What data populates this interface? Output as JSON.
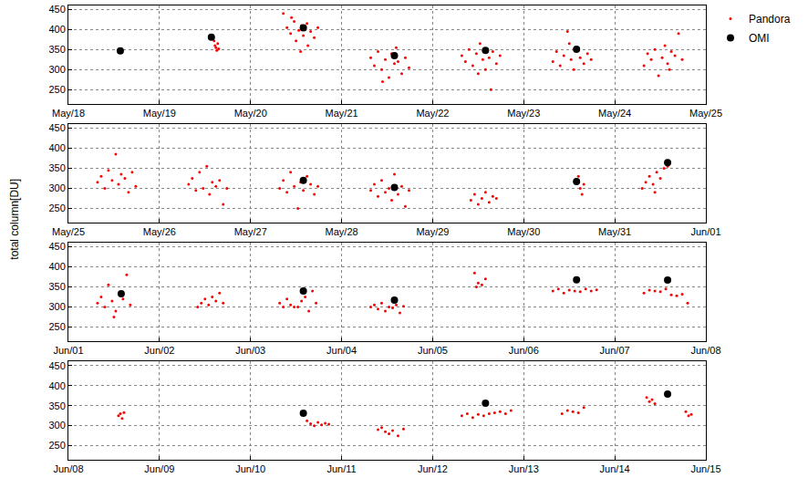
{
  "chart_data": {
    "type": "scatter",
    "y_label": "total column[DU]",
    "grid": true,
    "legend": "right",
    "ylim": [
      215,
      460
    ],
    "yticks": [
      250,
      300,
      350,
      400,
      450
    ],
    "series": [
      {
        "name": "Pandora",
        "color": "#ff0000",
        "marker": "dot"
      },
      {
        "name": "OMI",
        "color": "#000000",
        "marker": "circle"
      }
    ],
    "panels": [
      {
        "xlim": [
          0,
          7
        ],
        "xticks": [
          {
            "value": 0,
            "label": "May/18"
          },
          {
            "value": 1,
            "label": "May/19"
          },
          {
            "value": 2,
            "label": "May/20"
          },
          {
            "value": 3,
            "label": "May/21"
          },
          {
            "value": 4,
            "label": "May/22"
          },
          {
            "value": 5,
            "label": "May/23"
          },
          {
            "value": 6,
            "label": "May/24"
          },
          {
            "value": 7,
            "label": "May/25"
          }
        ],
        "series": [
          {
            "x": [
              1.6,
              1.61,
              1.62,
              1.63,
              1.64,
              1.65,
              2.36,
              2.4,
              2.44,
              2.48,
              2.5,
              2.53,
              2.56,
              2.58,
              2.6,
              2.63,
              2.66,
              2.7,
              2.74,
              2.45,
              2.55,
              2.62,
              3.32,
              3.36,
              3.4,
              3.44,
              3.48,
              3.52,
              3.55,
              3.58,
              3.62,
              3.66,
              3.7,
              3.74,
              3.45,
              3.6,
              4.32,
              4.36,
              4.4,
              4.44,
              4.48,
              4.52,
              4.55,
              4.58,
              4.62,
              4.66,
              4.7,
              4.74,
              4.5,
              4.64,
              5.32,
              5.36,
              5.4,
              5.44,
              5.48,
              5.52,
              5.55,
              5.58,
              5.62,
              5.66,
              5.7,
              5.74,
              5.5,
              6.32,
              6.36,
              6.4,
              6.44,
              6.48,
              6.52,
              6.55,
              6.58,
              6.62,
              6.66,
              6.7,
              6.74,
              6.6
            ],
            "values": [
              372,
              360,
              355,
              348,
              365,
              352,
              440,
              405,
              390,
              420,
              372,
              398,
              410,
              385,
              400,
              360,
              395,
              380,
              405,
              430,
              345,
              415,
              330,
              310,
              345,
              300,
              325,
              280,
              340,
              315,
              320,
              290,
              330,
              305,
              270,
              355,
              335,
              320,
              350,
              310,
              340,
              365,
              325,
              300,
              330,
              345,
              315,
              335,
              290,
              250,
              320,
              345,
              310,
              335,
              395,
              325,
              300,
              350,
              330,
              315,
              340,
              325,
              365,
              310,
              340,
              325,
              350,
              285,
              330,
              360,
              315,
              345,
              335,
              390,
              325,
              300
            ]
          },
          {
            "x": [
              0.57,
              1.57,
              2.58,
              3.58,
              4.58,
              5.58
            ],
            "values": [
              347,
              381,
              404,
              335,
              348,
              351
            ]
          }
        ]
      },
      {
        "xlim": [
          7,
          14
        ],
        "xticks": [
          {
            "value": 7,
            "label": "May/25"
          },
          {
            "value": 8,
            "label": "May/26"
          },
          {
            "value": 9,
            "label": "May/27"
          },
          {
            "value": 10,
            "label": "May/28"
          },
          {
            "value": 11,
            "label": "May/29"
          },
          {
            "value": 12,
            "label": "May/30"
          },
          {
            "value": 13,
            "label": "May/31"
          },
          {
            "value": 14,
            "label": "Jun/01"
          }
        ],
        "series": [
          {
            "x": [
              7.32,
              7.36,
              7.4,
              7.44,
              7.48,
              7.52,
              7.55,
              7.58,
              7.62,
              7.66,
              7.7,
              7.74,
              8.32,
              8.36,
              8.4,
              8.44,
              8.48,
              8.52,
              8.55,
              8.58,
              8.62,
              8.66,
              8.7,
              8.74,
              9.32,
              9.36,
              9.4,
              9.44,
              9.48,
              9.52,
              9.55,
              9.58,
              9.62,
              9.66,
              9.7,
              9.74,
              10.32,
              10.36,
              10.4,
              10.44,
              10.48,
              10.52,
              10.55,
              10.58,
              10.62,
              10.66,
              10.7,
              10.74,
              11.42,
              11.46,
              11.5,
              11.54,
              11.58,
              11.62,
              11.66,
              11.7,
              12.6,
              12.62,
              12.64,
              12.66,
              13.3,
              13.34,
              13.38,
              13.42,
              13.46,
              13.5,
              13.54,
              13.58,
              13.6,
              13.44
            ],
            "values": [
              315,
              330,
              300,
              345,
              320,
              385,
              310,
              335,
              325,
              290,
              340,
              305,
              310,
              325,
              295,
              340,
              300,
              355,
              285,
              315,
              305,
              320,
              260,
              300,
              300,
              320,
              290,
              340,
              305,
              250,
              315,
              295,
              330,
              310,
              285,
              305,
              295,
              310,
              280,
              320,
              290,
              300,
              270,
              335,
              285,
              305,
              255,
              295,
              270,
              285,
              260,
              275,
              290,
              265,
              280,
              275,
              330,
              300,
              285,
              310,
              300,
              315,
              330,
              310,
              340,
              325,
              350,
              355,
              365,
              290
            ]
          },
          {
            "x": [
              9.58,
              10.58,
              12.58,
              13.58
            ],
            "values": [
              320,
              302,
              317,
              364
            ]
          }
        ]
      },
      {
        "xlim": [
          14,
          21
        ],
        "xticks": [
          {
            "value": 14,
            "label": "Jun/01"
          },
          {
            "value": 15,
            "label": "Jun/02"
          },
          {
            "value": 16,
            "label": "Jun/03"
          },
          {
            "value": 17,
            "label": "Jun/04"
          },
          {
            "value": 18,
            "label": "Jun/05"
          },
          {
            "value": 19,
            "label": "Jun/06"
          },
          {
            "value": 20,
            "label": "Jun/07"
          },
          {
            "value": 21,
            "label": "Jun/08"
          }
        ],
        "series": [
          {
            "x": [
              14.32,
              14.36,
              14.4,
              14.44,
              14.48,
              14.52,
              14.56,
              14.6,
              14.64,
              14.68,
              14.5,
              15.42,
              15.46,
              15.5,
              15.54,
              15.58,
              15.62,
              15.66,
              15.7,
              16.32,
              16.36,
              16.4,
              16.44,
              16.48,
              16.52,
              16.56,
              16.6,
              16.64,
              16.68,
              16.72,
              17.32,
              17.36,
              17.4,
              17.44,
              17.48,
              17.52,
              17.56,
              17.6,
              17.64,
              17.68,
              18.46,
              18.5,
              18.54,
              18.58,
              18.48,
              19.32,
              19.38,
              19.44,
              19.5,
              19.56,
              19.62,
              19.68,
              19.74,
              19.8,
              20.32,
              20.38,
              20.44,
              20.5,
              20.56,
              20.62,
              20.68,
              20.74,
              20.8
            ],
            "values": [
              310,
              325,
              300,
              355,
              315,
              290,
              335,
              320,
              380,
              305,
              275,
              300,
              310,
              320,
              305,
              325,
              315,
              335,
              310,
              310,
              300,
              320,
              305,
              300,
              300,
              315,
              325,
              290,
              340,
              310,
              300,
              305,
              295,
              310,
              290,
              300,
              298,
              305,
              285,
              302,
              385,
              360,
              355,
              370,
              350,
              340,
              345,
              335,
              342,
              340,
              338,
              345,
              340,
              343,
              335,
              342,
              340,
              338,
              345,
              330,
              328,
              332,
              310
            ]
          },
          {
            "x": [
              14.58,
              16.58,
              17.58,
              19.58,
              20.58
            ],
            "values": [
              333,
              340,
              317,
              368,
              367
            ]
          }
        ]
      },
      {
        "xlim": [
          21,
          28
        ],
        "xticks": [
          {
            "value": 21,
            "label": "Jun/08"
          },
          {
            "value": 22,
            "label": "Jun/09"
          },
          {
            "value": 23,
            "label": "Jun/10"
          },
          {
            "value": 24,
            "label": "Jun/11"
          },
          {
            "value": 25,
            "label": "Jun/12"
          },
          {
            "value": 26,
            "label": "Jun/13"
          },
          {
            "value": 27,
            "label": "Jun/14"
          },
          {
            "value": 28,
            "label": "Jun/15"
          }
        ],
        "series": [
          {
            "x": [
              21.55,
              21.57,
              21.59,
              21.61,
              23.62,
              23.66,
              23.7,
              23.74,
              23.78,
              23.82,
              23.86,
              24.4,
              24.44,
              24.48,
              24.52,
              24.56,
              24.62,
              24.68,
              25.32,
              25.38,
              25.44,
              25.5,
              25.56,
              25.62,
              25.68,
              25.74,
              25.8,
              25.86,
              26.42,
              26.48,
              26.54,
              26.6,
              26.66,
              27.35,
              27.38,
              27.41,
              27.44,
              27.78,
              27.81,
              27.84
            ],
            "values": [
              325,
              330,
              318,
              333,
              312,
              305,
              300,
              308,
              302,
              306,
              304,
              290,
              295,
              285,
              280,
              288,
              275,
              292,
              325,
              330,
              320,
              328,
              325,
              330,
              332,
              335,
              330,
              338,
              330,
              338,
              335,
              332,
              345,
              370,
              360,
              365,
              355,
              335,
              325,
              328
            ]
          },
          {
            "x": [
              23.58,
              25.58,
              27.58
            ],
            "values": [
              331,
              356,
              379
            ]
          }
        ]
      }
    ]
  }
}
